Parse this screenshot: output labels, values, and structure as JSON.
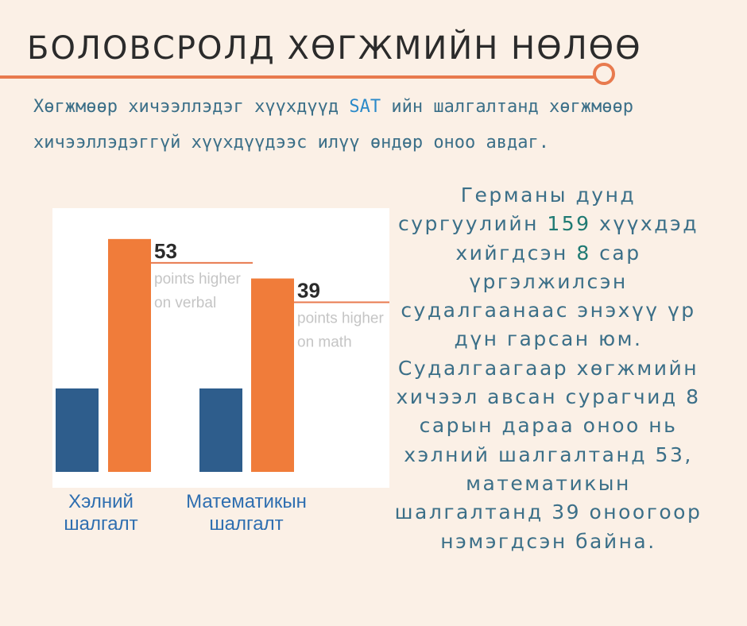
{
  "header": {
    "title": "БОЛОВСРОЛД ХӨГЖМИЙН НӨЛӨӨ"
  },
  "intro": {
    "part1": "Хөгжмөөр хичээллэдэг хүүхдүүд ",
    "highlight": "SAT",
    "part2": " ийн шалгалтанд хөгжмөөр хичээллэдэггүй хүүхдүүдээс илүү өндөр оноо авдаг."
  },
  "side_text": {
    "part1": "Германы дунд сургуулийн ",
    "n_students": "159",
    "part2": " хүүхдэд хийгдсэн ",
    "n_months": "8",
    "part3": " сар үргэлжилсэн судалгаанаас энэхүү үр дүн гарсан юм. Судалгаагаар хөгжмийн хичээл авсан сурагчид 8 сарын дараа оноо нь хэлний шалгалтанд 53, математикын шалгалтанд 39 оноогоор нэмэгдсэн байна."
  },
  "colors": {
    "accent": "#e87a4e",
    "bar_baseline": "#2e5d8c",
    "bar_music": "#f07c3a",
    "text_blue": "#3b6f88"
  },
  "chart_data": {
    "type": "bar",
    "categories": [
      "Хэлний шалгалт",
      "Математикын шалгалт"
    ],
    "category_lines": [
      [
        "Хэлний",
        "шалгалт"
      ],
      [
        "Математикын",
        "шалгалт"
      ]
    ],
    "series": [
      {
        "values": [
          0,
          0
        ]
      },
      {
        "values": [
          53,
          39
        ]
      }
    ],
    "annotations": [
      {
        "category_index": 0,
        "value": "53",
        "lines": [
          "points higher",
          "on verbal"
        ]
      },
      {
        "category_index": 1,
        "value": "39",
        "lines": [
          "points higher",
          "on math"
        ]
      }
    ]
  }
}
